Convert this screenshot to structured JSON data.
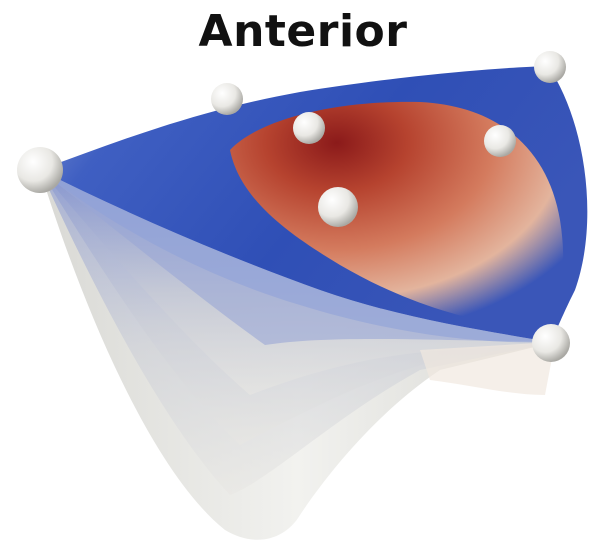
{
  "title": "Anterior",
  "colors": {
    "high": "#8b1a1a",
    "mid": "#d9836a",
    "low": "#3a56b8",
    "neutral": "#e6e6e2",
    "marker": "#f0efeb"
  },
  "markers": [
    {
      "name": "marker-left"
    },
    {
      "name": "marker-top-left"
    },
    {
      "name": "marker-top-center"
    },
    {
      "name": "marker-top-right-corner"
    },
    {
      "name": "marker-right"
    },
    {
      "name": "marker-center"
    },
    {
      "name": "marker-bottom-right"
    }
  ]
}
